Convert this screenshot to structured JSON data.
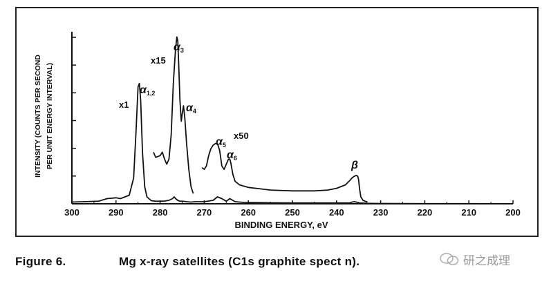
{
  "figure": {
    "caption_label": "Figure 6.",
    "caption_text": "Mg x-ray satellites (C1s graphite spect     n)."
  },
  "watermark": {
    "text": "研之成理",
    "icon": "wechat-chat-bubbles-icon"
  },
  "chart_data": {
    "type": "line",
    "xlabel": "BINDING ENERGY, eV",
    "ylabel_lines": [
      "INTENSITY (COUNTS PER SECOND",
      "PER UNIT ENERGY INTERVAL)"
    ],
    "xlim": [
      300,
      200
    ],
    "x_reversed": true,
    "x_ticks": [
      300,
      290,
      280,
      270,
      260,
      250,
      240,
      230,
      220,
      210,
      200
    ],
    "ylim": [
      0,
      1
    ],
    "y_tick_count": 6,
    "y_tick_labels": false,
    "grid": false,
    "series": [
      {
        "scale_label": "x1",
        "x": [
          300,
          294,
          292,
          290,
          289,
          287,
          286,
          285.5,
          285,
          284.7,
          284.4,
          284,
          283.5,
          283,
          282,
          281,
          280,
          279,
          278,
          277.2,
          276.8,
          276.5,
          276,
          275.5,
          275,
          274.5,
          274,
          273,
          272,
          270,
          268,
          267,
          266,
          265,
          264.2,
          263,
          261,
          255,
          250,
          245,
          240,
          237,
          236.5,
          236,
          235.5,
          235,
          234,
          233,
          231,
          220,
          210,
          208
        ],
        "y": [
          0.01,
          0.015,
          0.03,
          0.035,
          0.03,
          0.05,
          0.15,
          0.4,
          0.68,
          0.7,
          0.6,
          0.3,
          0.1,
          0.04,
          0.018,
          0.015,
          0.015,
          0.016,
          0.02,
          0.03,
          0.04,
          0.03,
          0.02,
          0.015,
          0.015,
          0.014,
          0.012,
          0.01,
          0.012,
          0.012,
          0.02,
          0.04,
          0.03,
          0.015,
          0.03,
          0.012,
          0.008,
          0.006,
          0.005,
          0.005,
          0.005,
          0.005,
          0.01,
          0.012,
          0.01,
          0.005,
          0.004,
          0.003,
          0.002,
          0.001,
          0.001,
          0.001
        ]
      },
      {
        "scale_label": "x15",
        "x": [
          281.5,
          281,
          280,
          279.5,
          279,
          278.5,
          278,
          277.5,
          277,
          276.5,
          276.2,
          276,
          275.8,
          275.5,
          275.2,
          275,
          274.7,
          274.4,
          274,
          273.5,
          273,
          272.5
        ],
        "y": [
          0.3,
          0.27,
          0.28,
          0.3,
          0.26,
          0.23,
          0.26,
          0.4,
          0.7,
          0.9,
          0.97,
          0.95,
          0.82,
          0.6,
          0.48,
          0.52,
          0.57,
          0.5,
          0.35,
          0.2,
          0.1,
          0.06
        ]
      },
      {
        "scale_label": "x50",
        "x": [
          270.5,
          270,
          269.5,
          269,
          268.5,
          268,
          267.5,
          267,
          266.5,
          266,
          265.5,
          265,
          264.5,
          264.2,
          264,
          263.5,
          263,
          262,
          260,
          255,
          250,
          245,
          242,
          240,
          238,
          237,
          236.5,
          236,
          235.5,
          235.2,
          235,
          234.8,
          234.5,
          234,
          233.5,
          233
        ],
        "y": [
          0.21,
          0.2,
          0.22,
          0.28,
          0.32,
          0.34,
          0.35,
          0.35,
          0.31,
          0.22,
          0.2,
          0.23,
          0.26,
          0.26,
          0.24,
          0.17,
          0.13,
          0.11,
          0.095,
          0.08,
          0.075,
          0.075,
          0.08,
          0.09,
          0.11,
          0.135,
          0.15,
          0.16,
          0.165,
          0.16,
          0.14,
          0.09,
          0.04,
          0.02,
          0.015,
          0.01
        ]
      }
    ],
    "annotations": [
      {
        "greek": "α",
        "sub": "1,2"
      },
      {
        "greek": "α",
        "sub": "3"
      },
      {
        "greek": "α",
        "sub": "4"
      },
      {
        "greek": "α",
        "sub": "5"
      },
      {
        "greek": "α",
        "sub": "6"
      },
      {
        "greek": "β",
        "sub": ""
      }
    ],
    "scale_labels": [
      "x1",
      "x15",
      "x50"
    ]
  }
}
